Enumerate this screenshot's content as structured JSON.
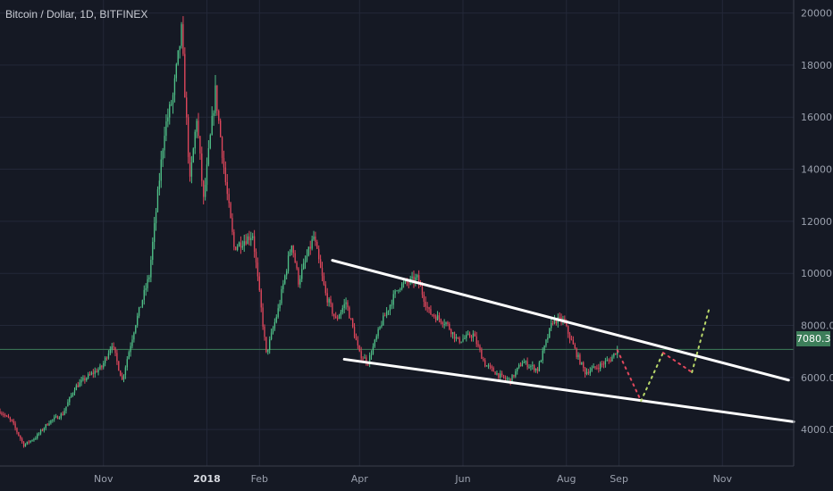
{
  "header": {
    "title": "Bitcoin / Dollar, 1D, BITFINEX"
  },
  "current_price_label": "7080.3",
  "colors": {
    "background": "#151924",
    "grid": "#232838",
    "up": "#4fbf87",
    "down": "#e0475c",
    "trendline": "#ffffff",
    "projection_up": "#b9d86a",
    "projection_down": "#e0475c",
    "price_line": "#3d7e5a",
    "axis_text": "#9aa0ad"
  },
  "chart_data": {
    "type": "candlestick",
    "title": "Bitcoin / Dollar, 1D, BITFINEX",
    "ylim": [
      2600,
      20500
    ],
    "y_ticks": [
      "4000.0",
      "6000.0",
      "8000.0",
      "10000.0",
      "12000.0",
      "14000.0",
      "16000.0",
      "18000.0",
      "20000.0"
    ],
    "y_tick_values": [
      4000,
      6000,
      8000,
      10000,
      12000,
      14000,
      16000,
      18000,
      20000
    ],
    "x_ticks": [
      "Nov",
      "2018",
      "Feb",
      "Apr",
      "Jun",
      "Aug",
      "Sep",
      "Nov"
    ],
    "x_tick_dates": [
      "2017-11-01",
      "2018-01-01",
      "2018-02-01",
      "2018-04-01",
      "2018-06-01",
      "2018-08-01",
      "2018-09-01",
      "2018-11-01"
    ],
    "x_range": [
      "2017-09-01",
      "2018-12-13"
    ],
    "current_price": 7080.3,
    "price_path": [
      [
        "2017-09-01",
        4700
      ],
      [
        "2017-09-08",
        4300
      ],
      [
        "2017-09-15",
        3400
      ],
      [
        "2017-09-22",
        3700
      ],
      [
        "2017-09-30",
        4300
      ],
      [
        "2017-10-08",
        4600
      ],
      [
        "2017-10-15",
        5600
      ],
      [
        "2017-10-22",
        6000
      ],
      [
        "2017-10-31",
        6400
      ],
      [
        "2017-11-06",
        7300
      ],
      [
        "2017-11-12",
        5900
      ],
      [
        "2017-11-20",
        8100
      ],
      [
        "2017-11-28",
        9900
      ],
      [
        "2017-12-07",
        15500
      ],
      [
        "2017-12-12",
        16800
      ],
      [
        "2017-12-17",
        19300
      ],
      [
        "2017-12-22",
        13500
      ],
      [
        "2017-12-26",
        16000
      ],
      [
        "2017-12-30",
        12800
      ],
      [
        "2018-01-06",
        17000
      ],
      [
        "2018-01-12",
        13500
      ],
      [
        "2018-01-17",
        11000
      ],
      [
        "2018-01-28",
        11500
      ],
      [
        "2018-02-05",
        6900
      ],
      [
        "2018-02-12",
        8600
      ],
      [
        "2018-02-20",
        11200
      ],
      [
        "2018-02-24",
        9700
      ],
      [
        "2018-03-05",
        11400
      ],
      [
        "2018-03-12",
        9200
      ],
      [
        "2018-03-18",
        8200
      ],
      [
        "2018-03-24",
        8900
      ],
      [
        "2018-04-01",
        6900
      ],
      [
        "2018-04-06",
        6600
      ],
      [
        "2018-04-14",
        8100
      ],
      [
        "2018-04-24",
        9500
      ],
      [
        "2018-05-05",
        9800
      ],
      [
        "2018-05-12",
        8500
      ],
      [
        "2018-05-22",
        8100
      ],
      [
        "2018-05-29",
        7400
      ],
      [
        "2018-06-07",
        7650
      ],
      [
        "2018-06-14",
        6500
      ],
      [
        "2018-06-24",
        6000
      ],
      [
        "2018-06-29",
        5900
      ],
      [
        "2018-07-06",
        6600
      ],
      [
        "2018-07-15",
        6300
      ],
      [
        "2018-07-24",
        8200
      ],
      [
        "2018-07-30",
        8200
      ],
      [
        "2018-08-07",
        6900
      ],
      [
        "2018-08-12",
        6200
      ],
      [
        "2018-08-19",
        6400
      ],
      [
        "2018-08-27",
        6700
      ],
      [
        "2018-08-31",
        7080
      ]
    ],
    "trendlines": [
      {
        "name": "upper",
        "from": [
          "2018-03-16",
          10500
        ],
        "to": [
          "2018-12-10",
          5900
        ]
      },
      {
        "name": "lower",
        "from": [
          "2018-03-23",
          6700
        ],
        "to": [
          "2018-12-13",
          4300
        ]
      }
    ],
    "projection": [
      {
        "style": "down",
        "points": [
          [
            "2018-08-31",
            7050
          ],
          [
            "2018-09-14",
            5100
          ]
        ]
      },
      {
        "style": "up",
        "points": [
          [
            "2018-09-14",
            5100
          ],
          [
            "2018-09-27",
            6950
          ]
        ]
      },
      {
        "style": "down",
        "points": [
          [
            "2018-09-27",
            6950
          ],
          [
            "2018-10-14",
            6200
          ]
        ]
      },
      {
        "style": "up",
        "points": [
          [
            "2018-10-14",
            6200
          ],
          [
            "2018-10-24",
            8600
          ]
        ]
      }
    ]
  }
}
